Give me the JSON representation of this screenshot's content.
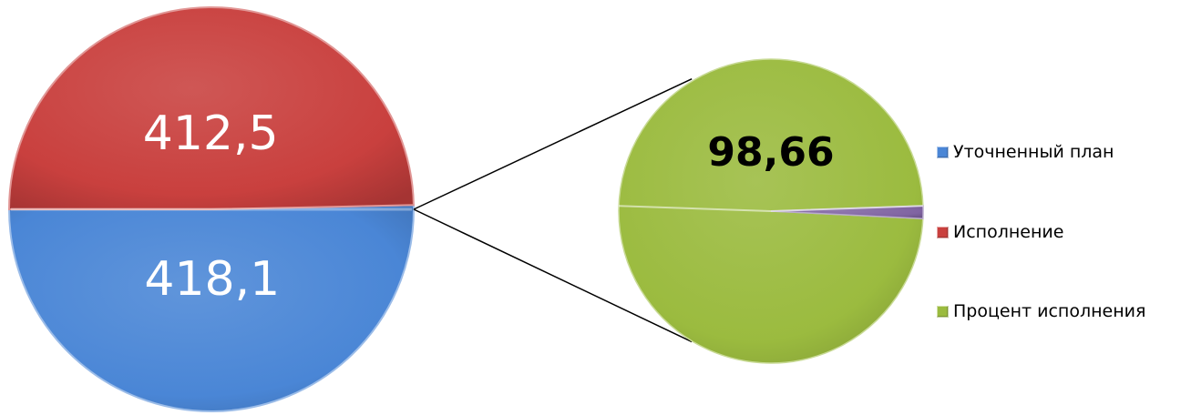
{
  "chart_data": {
    "type": "pie",
    "subtype": "pie-of-pie",
    "main_pie": {
      "slices": [
        {
          "name": "Уточненный план",
          "value": 418.1,
          "label": "418,1",
          "color": "#4A86D6"
        },
        {
          "name": "Исполнение",
          "value": 412.5,
          "label": "412,5",
          "color": "#C9403E"
        }
      ]
    },
    "secondary_pie": {
      "slices": [
        {
          "name": "Процент исполнения",
          "value": 98.66,
          "label": "98,66",
          "color": "#9BBB3F"
        },
        {
          "name": "",
          "value": 1.34,
          "label": "",
          "color": "#8064A2"
        }
      ]
    },
    "legend": {
      "position": "right",
      "items": [
        {
          "label": "Уточненный план",
          "color": "#4A86D6"
        },
        {
          "label": "Исполнение",
          "color": "#C9403E"
        },
        {
          "label": "Процент исполнения",
          "color": "#9BBB3F"
        }
      ]
    }
  }
}
